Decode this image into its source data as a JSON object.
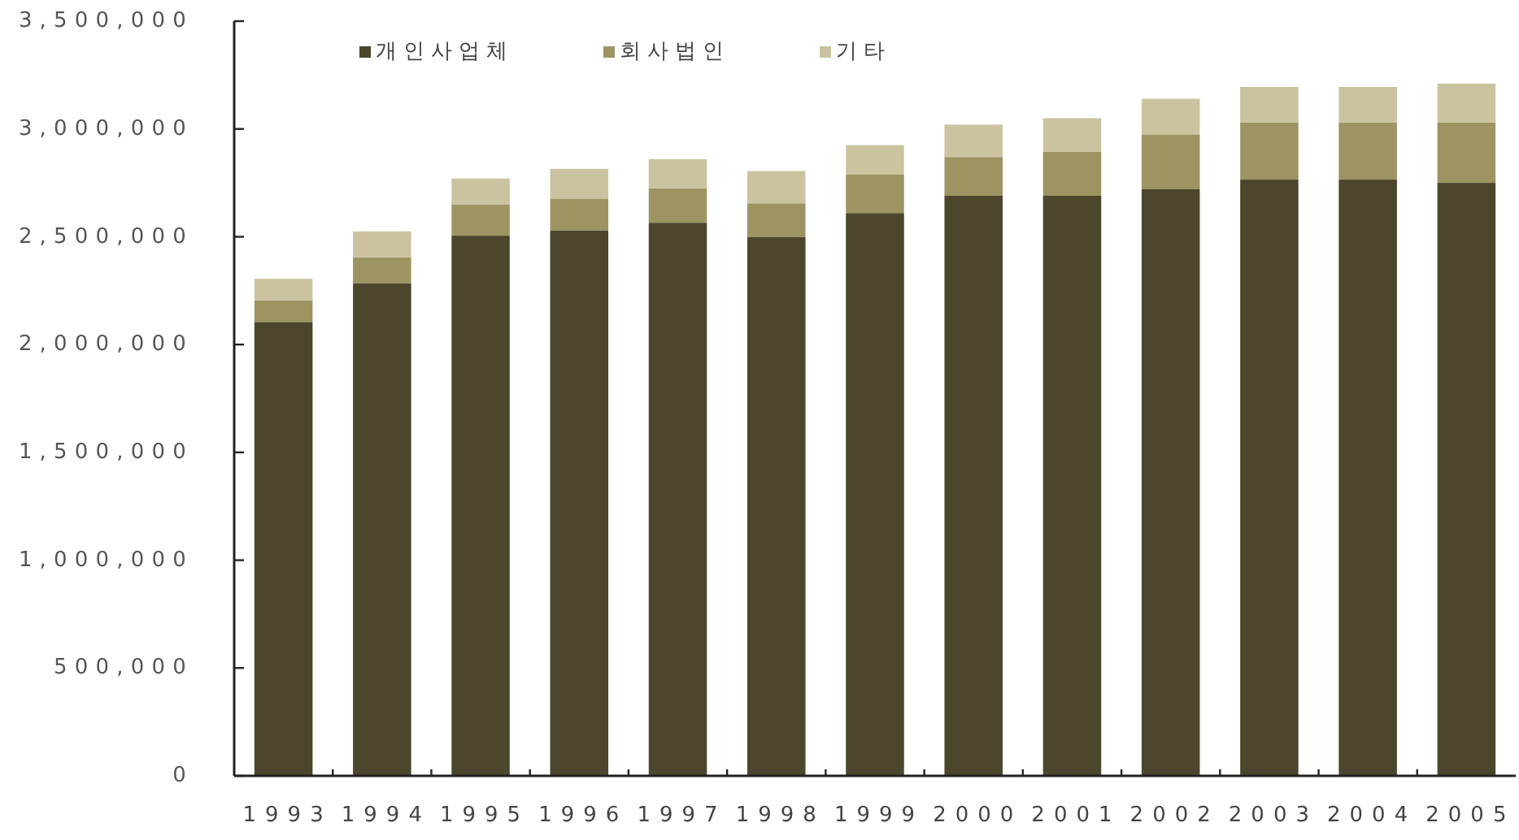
{
  "chart_data": {
    "type": "bar",
    "stacked": true,
    "categories": [
      "1993",
      "1994",
      "1995",
      "1996",
      "1997",
      "1998",
      "1999",
      "2000",
      "2001",
      "2002",
      "2003",
      "2004",
      "2005"
    ],
    "series": [
      {
        "name": "개인사업체",
        "color": "#4b462c",
        "values": [
          2105000,
          2285000,
          2505000,
          2530000,
          2565000,
          2500000,
          2610000,
          2690000,
          2690000,
          2720000,
          2765000,
          2765000,
          2750000
        ]
      },
      {
        "name": "회사법인",
        "color": "#9d9461",
        "values": [
          100000,
          120000,
          145000,
          145000,
          160000,
          155000,
          180000,
          180000,
          205000,
          255000,
          265000,
          265000,
          280000
        ]
      },
      {
        "name": "기타",
        "color": "#cbc3a0",
        "values": [
          100000,
          120000,
          120000,
          140000,
          135000,
          150000,
          135000,
          150000,
          155000,
          165000,
          165000,
          165000,
          180000
        ]
      }
    ],
    "ylim": [
      0,
      3500000
    ],
    "yticks": [
      0,
      {
        "value": 500000,
        "label": "500,000"
      },
      {
        "value": 1000000,
        "label": "1,000,000"
      },
      {
        "value": 1500000,
        "label": "1,500,000"
      },
      {
        "value": 2000000,
        "label": "2,000,000"
      },
      {
        "value": 2500000,
        "label": "2,500,000"
      },
      {
        "value": 3000000,
        "label": "3,000,000"
      },
      {
        "value": 3500000,
        "label": "3,500,000"
      }
    ],
    "legend": "top left"
  }
}
